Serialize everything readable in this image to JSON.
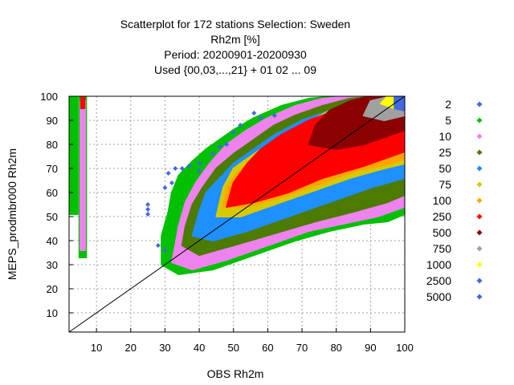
{
  "chart_data": {
    "type": "scatter",
    "title_lines": [
      "Scatterplot for  172 stations Selection: Sweden",
      "Rh2m [%]",
      "Period: 20200901-20200930",
      "Used {00,03,...,21} + 01 02 ... 09"
    ],
    "xlabel": "OBS Rh2m",
    "ylabel": "MEPS_prodmbr000 Rh2m",
    "xlim": [
      2,
      100
    ],
    "ylim": [
      2,
      100
    ],
    "x_ticks": [
      10,
      20,
      30,
      40,
      50,
      60,
      70,
      80,
      90,
      100
    ],
    "y_ticks": [
      10,
      20,
      30,
      40,
      50,
      60,
      70,
      80,
      90,
      100
    ],
    "grid": true,
    "diagonal": true,
    "legend_position": "right",
    "legend": [
      {
        "label": "2",
        "color": "#4169e1"
      },
      {
        "label": "5",
        "color": "#00c000"
      },
      {
        "label": "10",
        "color": "#ee82ee"
      },
      {
        "label": "25",
        "color": "#4d7a00"
      },
      {
        "label": "50",
        "color": "#1e90ff"
      },
      {
        "label": "75",
        "color": "#d8c800"
      },
      {
        "label": "100",
        "color": "#ffa500"
      },
      {
        "label": "250",
        "color": "#ff0000"
      },
      {
        "label": "500",
        "color": "#8b0000"
      },
      {
        "label": "750",
        "color": "#a0a0a0"
      },
      {
        "label": "1000",
        "color": "#ffff00"
      },
      {
        "label": "2500",
        "color": "#4169e1"
      },
      {
        "label": "5000",
        "color": "#4169e1"
      }
    ]
  }
}
